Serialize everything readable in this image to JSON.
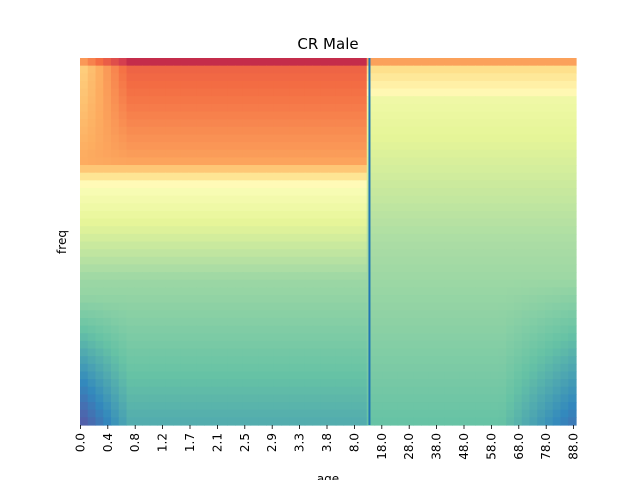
{
  "chart_data": {
    "type": "heatmap",
    "title": "CR Male",
    "xlabel": "age",
    "ylabel": "freq",
    "x_tick_labels": [
      "0.0",
      "0.4",
      "0.8",
      "1.2",
      "1.7",
      "2.1",
      "2.5",
      "2.9",
      "3.3",
      "3.8",
      "8.0",
      "18.0",
      "28.0",
      "38.0",
      "48.0",
      "58.0",
      "68.0",
      "78.0",
      "88.0"
    ],
    "y_tick_labels": [],
    "colormap": "Spectral_r",
    "value_range": [
      0,
      1
    ],
    "divider_after_tick": "8.0",
    "divider_color": "#1f77b4",
    "colorbar": false,
    "grid": false
  }
}
